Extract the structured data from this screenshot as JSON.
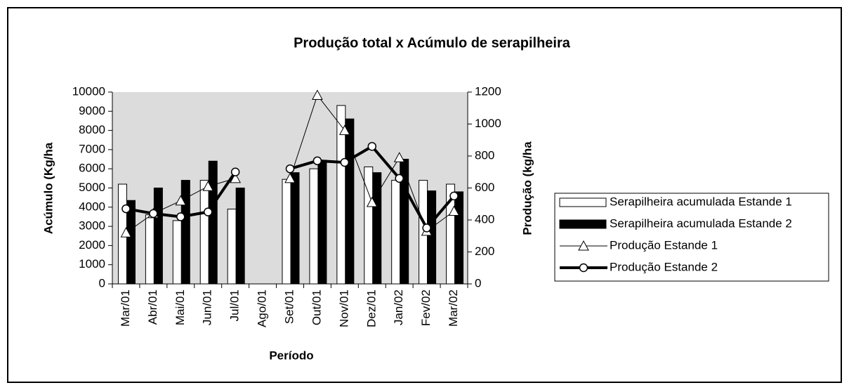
{
  "chart_data": {
    "type": "bar-line",
    "title": "Produção total x Acúmulo de serapilheira",
    "x_label": "Período",
    "y_label": "Acúmulo (Kg/ha",
    "y2_label": "Produção (kg/ha",
    "categories": [
      "Mar/01",
      "Abr/01",
      "Mai/01",
      "Jun/01",
      "Jul/01",
      "Ago/01",
      "Set/01",
      "Out/01",
      "Nov/01",
      "Dez/01",
      "Jan/02",
      "Fev/02",
      "Mar/02"
    ],
    "ylim": [
      0,
      10000
    ],
    "yticks": [
      0,
      1000,
      2000,
      3000,
      4000,
      5000,
      6000,
      7000,
      8000,
      9000,
      10000
    ],
    "y2lim": [
      0,
      1200
    ],
    "y2ticks": [
      0,
      200,
      400,
      600,
      800,
      1000,
      1200
    ],
    "series": [
      {
        "name": "Serapilheira acumulada Estande 1",
        "type": "bar",
        "color": "#ffffff",
        "values": [
          5200,
          3600,
          3300,
          5400,
          3900,
          null,
          5450,
          6000,
          9300,
          6100,
          5400,
          5400,
          5200
        ]
      },
      {
        "name": "Serapilheira acumulada Estande 2",
        "type": "bar",
        "color": "#000000",
        "values": [
          4350,
          5000,
          5400,
          6400,
          5000,
          null,
          5800,
          6400,
          8600,
          5800,
          6500,
          4850,
          4800
        ]
      },
      {
        "name": "Produção Estande 1",
        "type": "line",
        "axis": "y2",
        "color": "#000000",
        "values": [
          320,
          440,
          520,
          610,
          660,
          null,
          660,
          1180,
          960,
          510,
          790,
          330,
          455
        ]
      },
      {
        "name": "Produção Estande 2",
        "type": "line",
        "axis": "y2",
        "color": "#000000",
        "values": [
          470,
          440,
          420,
          450,
          700,
          null,
          720,
          770,
          760,
          860,
          660,
          350,
          550
        ]
      }
    ]
  }
}
